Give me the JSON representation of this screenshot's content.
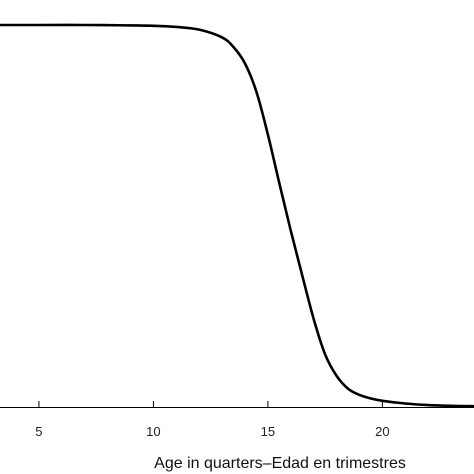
{
  "chart_data": {
    "type": "line",
    "title": "",
    "xlabel": "Age in quarters–Edad en trimestres",
    "ylabel": "",
    "xlim": [
      3.3,
      24
    ],
    "ylim": [
      0,
      1
    ],
    "x_ticks": [
      5,
      10,
      15,
      20
    ],
    "x_tick_labels": [
      "5",
      "10",
      "15",
      "20"
    ],
    "grid": false,
    "series": [
      {
        "x": [
          3.3,
          5,
          7,
          9,
          10,
          11,
          12,
          13,
          13.5,
          14,
          14.5,
          15,
          15.5,
          16,
          16.5,
          17,
          17.5,
          18,
          18.5,
          19,
          19.5,
          20,
          21,
          22,
          23,
          24
        ],
        "y": [
          0.982,
          0.982,
          0.982,
          0.981,
          0.98,
          0.977,
          0.97,
          0.95,
          0.925,
          0.883,
          0.81,
          0.7,
          0.575,
          0.453,
          0.338,
          0.226,
          0.135,
          0.08,
          0.047,
          0.031,
          0.022,
          0.016,
          0.009,
          0.005,
          0.003,
          0.002
        ],
        "color": "#000000"
      }
    ]
  }
}
